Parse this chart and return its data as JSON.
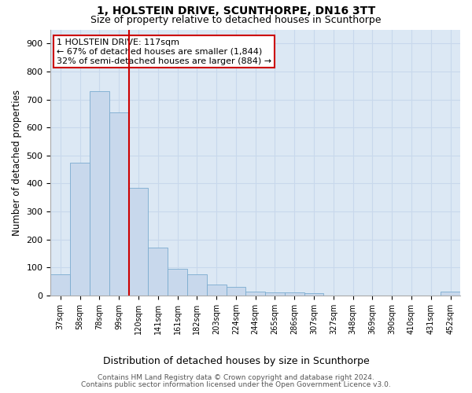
{
  "title1": "1, HOLSTEIN DRIVE, SCUNTHORPE, DN16 3TT",
  "title2": "Size of property relative to detached houses in Scunthorpe",
  "xlabel": "Distribution of detached houses by size in Scunthorpe",
  "ylabel": "Number of detached properties",
  "categories": [
    "37sqm",
    "58sqm",
    "78sqm",
    "99sqm",
    "120sqm",
    "141sqm",
    "161sqm",
    "182sqm",
    "203sqm",
    "224sqm",
    "244sqm",
    "265sqm",
    "286sqm",
    "307sqm",
    "327sqm",
    "348sqm",
    "369sqm",
    "390sqm",
    "410sqm",
    "431sqm",
    "452sqm"
  ],
  "values": [
    75,
    475,
    730,
    655,
    385,
    170,
    95,
    75,
    40,
    30,
    15,
    12,
    10,
    8,
    0,
    0,
    0,
    0,
    0,
    0,
    15
  ],
  "bar_color": "#c8d8ec",
  "bar_edge_color": "#7aabcf",
  "vline_color": "#cc0000",
  "annotation_text": "1 HOLSTEIN DRIVE: 117sqm\n← 67% of detached houses are smaller (1,844)\n32% of semi-detached houses are larger (884) →",
  "annotation_box_color": "#ffffff",
  "annotation_box_edge": "#cc0000",
  "grid_color": "#c8d8ec",
  "background_color": "#dce8f4",
  "ylim": [
    0,
    950
  ],
  "yticks": [
    0,
    100,
    200,
    300,
    400,
    500,
    600,
    700,
    800,
    900
  ],
  "footer1": "Contains HM Land Registry data © Crown copyright and database right 2024.",
  "footer2": "Contains public sector information licensed under the Open Government Licence v3.0."
}
